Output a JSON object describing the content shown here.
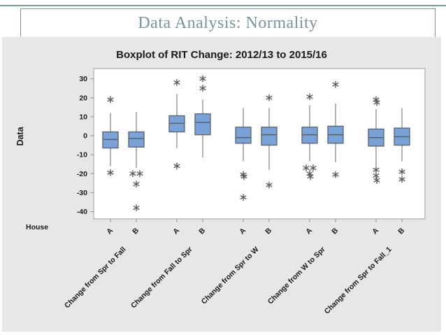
{
  "slide": {
    "title": "Data Analysis: Normality",
    "accent_color": "#7e979c"
  },
  "chart_data": {
    "type": "boxplot",
    "title": "Boxplot of RIT Change: 2012/13 to 2015/16",
    "ylabel": "Data",
    "xlabel_row_label": "House",
    "ylim": [
      -43,
      35
    ],
    "yticks": [
      30,
      20,
      10,
      0,
      -10,
      -20,
      -30,
      -40
    ],
    "grid": false,
    "legend": "none",
    "groups": [
      {
        "label": "Change from Spr to Fall",
        "boxes": [
          {
            "house": "A",
            "whislo": -16,
            "q1": -6.5,
            "med": -2,
            "q3": 2,
            "whishi": 12,
            "outliers": [
              [
                0,
                19
              ],
              [
                0,
                -19.5
              ]
            ]
          },
          {
            "house": "B",
            "whislo": -17,
            "q1": -6,
            "med": -1.5,
            "q3": 2,
            "whishi": 12.5,
            "outliers": [
              [
                -5,
                -20
              ],
              [
                5,
                -20
              ],
              [
                0,
                -25.5
              ],
              [
                0,
                -38
              ]
            ]
          }
        ]
      },
      {
        "label": "Change from Fall to Spr",
        "boxes": [
          {
            "house": "A",
            "whislo": -6.5,
            "q1": 2,
            "med": 6.5,
            "q3": 10.5,
            "whishi": 22,
            "outliers": [
              [
                0,
                28
              ],
              [
                0,
                -16
              ]
            ]
          },
          {
            "house": "B",
            "whislo": -11.5,
            "q1": 0.5,
            "med": 7,
            "q3": 11.5,
            "whishi": 19,
            "outliers": [
              [
                0,
                30
              ],
              [
                0,
                25
              ]
            ]
          }
        ]
      },
      {
        "label": "Change from Spr to W",
        "boxes": [
          {
            "house": "A",
            "whislo": -13.5,
            "q1": -4,
            "med": -1,
            "q3": 4.5,
            "whishi": 14.5,
            "outliers": [
              [
                0,
                -20.5
              ],
              [
                1,
                -21.5
              ],
              [
                0,
                -32.5
              ]
            ]
          },
          {
            "house": "B",
            "whislo": -18,
            "q1": -5,
            "med": 0.5,
            "q3": 4.5,
            "whishi": 14.5,
            "outliers": [
              [
                0,
                20
              ],
              [
                0,
                -26
              ]
            ]
          }
        ]
      },
      {
        "label": "Change from W to Spr",
        "boxes": [
          {
            "house": "A",
            "whislo": -13.5,
            "q1": -4,
            "med": 0.5,
            "q3": 4.5,
            "whishi": 16,
            "outliers": [
              [
                0,
                20.5
              ],
              [
                -5,
                -17
              ],
              [
                5,
                -17
              ],
              [
                0,
                -20
              ],
              [
                1,
                -21.5
              ]
            ]
          },
          {
            "house": "B",
            "whislo": -14,
            "q1": -4,
            "med": 0.5,
            "q3": 5,
            "whishi": 17,
            "outliers": [
              [
                0,
                27
              ],
              [
                0,
                -20.5
              ]
            ]
          }
        ]
      },
      {
        "label": "Change from Spr to Fall_1",
        "boxes": [
          {
            "house": "A",
            "whislo": -16,
            "q1": -5.5,
            "med": -1,
            "q3": 3.5,
            "whishi": 14,
            "outliers": [
              [
                0,
                19
              ],
              [
                1,
                17.5
              ],
              [
                0,
                -18
              ],
              [
                0,
                -21
              ],
              [
                1,
                -23.5
              ]
            ]
          },
          {
            "house": "B",
            "whislo": -13.5,
            "q1": -5,
            "med": -0.5,
            "q3": 4,
            "whishi": 14.5,
            "outliers": [
              [
                0,
                -19
              ],
              [
                0,
                -23
              ]
            ]
          }
        ]
      }
    ],
    "colors": {
      "panel_bg": "#e7e7e7",
      "plot_bg": "#ffffff",
      "plot_border": "#ababab",
      "box_fill": "#7ba2d6",
      "box_stroke": "#566270",
      "whisker": "#8a8a8a",
      "outlier": "#5c5c5c",
      "text": "#1a1a1a",
      "tick": "#9a9a9a"
    }
  }
}
